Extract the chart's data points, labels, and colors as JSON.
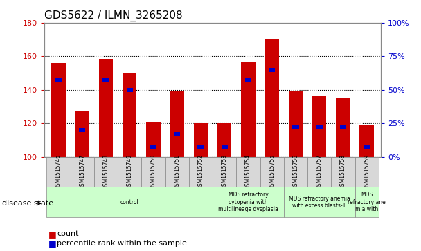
{
  "title": "GDS5622 / ILMN_3265208",
  "samples": [
    "GSM1515746",
    "GSM1515747",
    "GSM1515748",
    "GSM1515749",
    "GSM1515750",
    "GSM1515751",
    "GSM1515752",
    "GSM1515753",
    "GSM1515754",
    "GSM1515755",
    "GSM1515756",
    "GSM1515757",
    "GSM1515758",
    "GSM1515759"
  ],
  "counts": [
    156,
    127,
    158,
    150,
    121,
    139,
    120,
    120,
    157,
    170,
    139,
    136,
    135,
    119
  ],
  "percentiles": [
    57,
    20,
    57,
    50,
    7,
    17,
    7,
    7,
    57,
    65,
    22,
    22,
    22,
    7
  ],
  "ylim_left": [
    100,
    180
  ],
  "ylim_right": [
    0,
    100
  ],
  "yticks_left": [
    100,
    120,
    140,
    160,
    180
  ],
  "yticks_right": [
    0,
    25,
    50,
    75,
    100
  ],
  "bar_color": "#cc0000",
  "percentile_color": "#0000cc",
  "bar_bottom": 100,
  "bar_width": 0.6,
  "disease_groups": [
    {
      "label": "control",
      "start": 0,
      "end": 6,
      "color": "#ccffcc"
    },
    {
      "label": "MDS refractory\ncytopenia with\nmultilineage dysplasia",
      "start": 7,
      "end": 9,
      "color": "#ccffcc"
    },
    {
      "label": "MDS refractory anemia\nwith excess blasts-1",
      "start": 10,
      "end": 12,
      "color": "#ccffcc"
    },
    {
      "label": "MDS\nrefractory ane\nmia with",
      "start": 13,
      "end": 13,
      "color": "#ccffcc"
    }
  ],
  "disease_state_label": "disease state",
  "legend_count_label": "count",
  "legend_percentile_label": "percentile rank within the sample",
  "background_color": "#ffffff",
  "tick_label_color_left": "#cc0000",
  "tick_label_color_right": "#0000cc"
}
